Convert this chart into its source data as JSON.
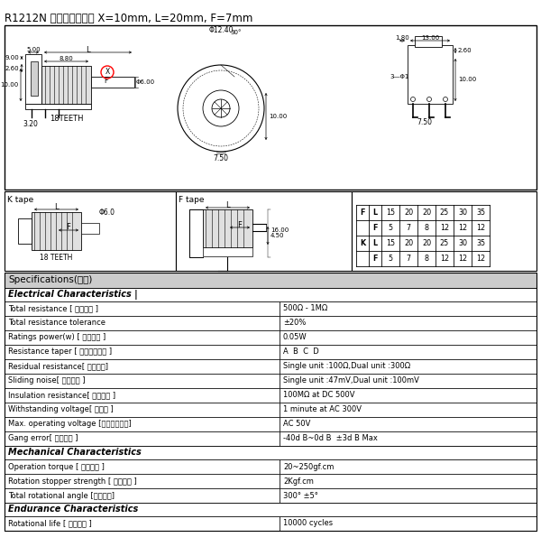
{
  "title": "R1212N ระยะแกน X=10mm, L=20mm, F=7mm",
  "bg_color": "#ffffff",
  "spec_header": "Specifications(規格)",
  "electrical_header": "Electrical Characteristics |",
  "mechanical_header": "Mechanical Characteristics",
  "endurance_header": "Endurance Characteristics",
  "electrical_rows": [
    [
      "Total resistance [ 全阻抗値 ]",
      "500Ω - 1MΩ"
    ],
    [
      "Total resistance tolerance",
      "±20%"
    ],
    [
      "Ratings power(w) [ 額定功率 ]",
      "0.05W"
    ],
    [
      "Resistance taper [ 阻抗變化特性 ]",
      "A  B  C  D"
    ],
    [
      "Residual resistance[ 殘留阻値]",
      "Single unit :100Ω,Dual unit :300Ω"
    ],
    [
      "Sliding noise[ 滑動雜音 ]",
      "Single unit :47mV,Dual unit :100mV"
    ],
    [
      "Insulation resistance[ 絕緣阻抗 ]",
      "100MΩ at DC 500V"
    ],
    [
      "Withstanding voltage[ 耐電壓 ]",
      "1 minute at AC 300V"
    ],
    [
      "Max. operating voltage [最高使用電壓]",
      "AC 50V"
    ],
    [
      "Gang error[ 連動誤差 ]",
      "-40d B~0d B  ±3d B Max"
    ]
  ],
  "mechanical_rows": [
    [
      "Operation torque [ 回轉力矩 ]",
      "20~250gf.cm"
    ],
    [
      "Rotation stopper strength [ 止動強度 ]",
      "2Kgf.cm"
    ],
    [
      "Total rotational angle [回轉角度]",
      "300° ±5°"
    ]
  ],
  "endurance_rows": [
    [
      "Rotational life [ 回轉寽命 ]",
      "10000 cycles"
    ]
  ],
  "table_header_color": "#cccccc",
  "border_color": "#000000",
  "table_rows": [
    [
      "F",
      "L",
      "15",
      "20",
      "20",
      "25",
      "30",
      "35"
    ],
    [
      "",
      "F",
      "5",
      "7",
      "8",
      "12",
      "12",
      "12"
    ],
    [
      "K",
      "L",
      "15",
      "20",
      "20",
      "25",
      "30",
      "35"
    ],
    [
      "",
      "F",
      "5",
      "7",
      "8",
      "12",
      "12",
      "12"
    ]
  ]
}
